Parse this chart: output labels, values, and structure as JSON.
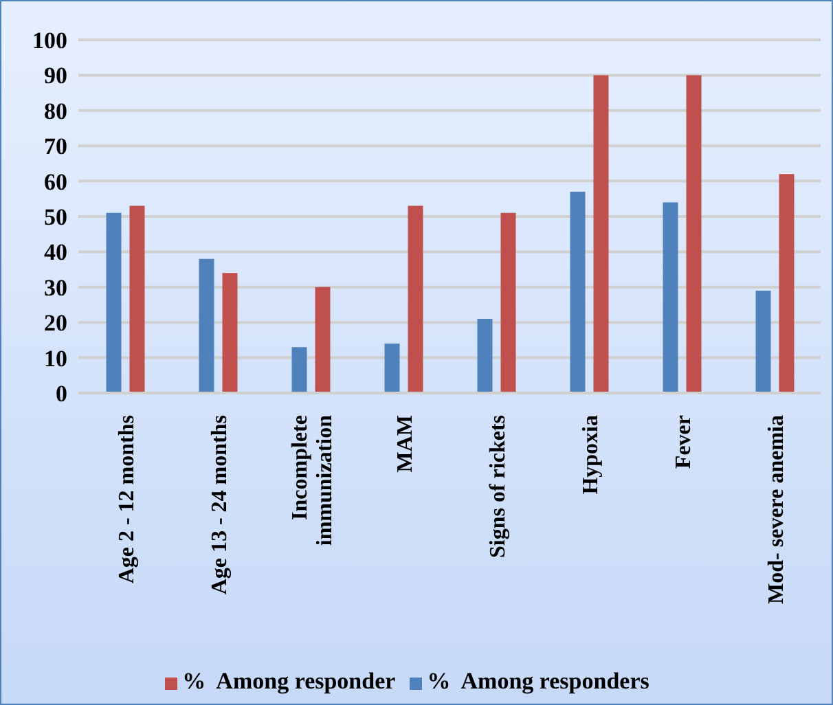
{
  "chart_data": {
    "type": "bar",
    "categories": [
      "Age 2 - 12 months",
      "Age 13 - 24 months",
      "Incomplete immunization",
      "MAM",
      "Signs of rickets",
      "Hypoxia",
      "Fever",
      "Mod- severe anemia"
    ],
    "series": [
      {
        "name": "%  Among responders",
        "color": "#4f81bd",
        "values": [
          51,
          38,
          13,
          14,
          21,
          57,
          54,
          29
        ]
      },
      {
        "name": "%  Among responder",
        "color": "#c0504d",
        "values": [
          53,
          34,
          30,
          53,
          51,
          90,
          90,
          62
        ]
      }
    ],
    "ylim": [
      0,
      100
    ],
    "yticks": [
      0,
      10,
      20,
      30,
      40,
      50,
      60,
      70,
      80,
      90,
      100
    ],
    "grid": "y",
    "legend": "bottom"
  }
}
